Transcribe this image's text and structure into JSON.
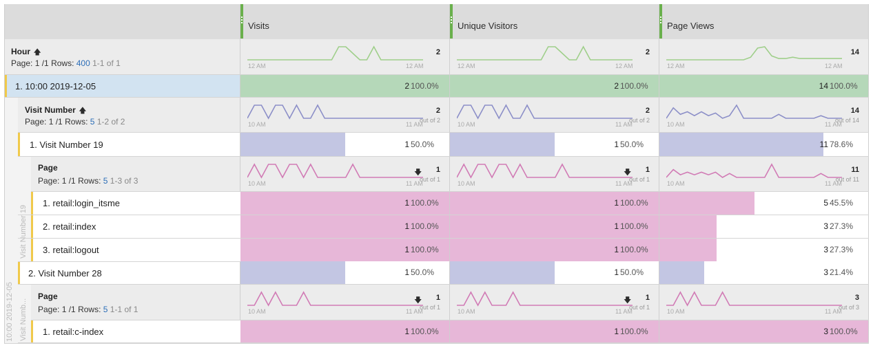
{
  "columns": [
    {
      "title": "Visits"
    },
    {
      "title": "Unique Visitors"
    },
    {
      "title": "Page Views"
    }
  ],
  "colors": {
    "green_bar": "#b5d8b9",
    "purple_bar": "#c3c6e3",
    "pink_bar": "#e7b7d8",
    "spark_green": "#9fcf8a",
    "spark_purple": "#8c8fc8",
    "spark_pink": "#d17bb5",
    "accent_yellow": "#f0c94a"
  },
  "hour": {
    "name": "Hour",
    "page": "Page: 1 /1",
    "rows_label": "Rows:",
    "rows_value": "400",
    "range": "1-1 of 1",
    "totals": [
      "2",
      "2",
      "14"
    ],
    "tick_start": "12 AM",
    "tick_end": "12 AM"
  },
  "row_hour": {
    "label": "1. 10:00 2019-12-05",
    "values": [
      {
        "n": "1",
        "v": "2",
        "p": "100.0%",
        "f": 1.0
      },
      {
        "v": "2",
        "p": "100.0%",
        "f": 1.0
      },
      {
        "v": "14",
        "p": "100.0%",
        "f": 1.0
      }
    ]
  },
  "visit_number": {
    "name": "Visit Number",
    "page": "Page: 1 /1",
    "rows_label": "Rows:",
    "rows_value": "5",
    "range": "1-2 of 2",
    "totals": [
      "2",
      "2",
      "14"
    ],
    "outof": [
      "out of 2",
      "out of 2",
      "out of 14"
    ],
    "tick_start": "10 AM",
    "tick_end": "11 AM"
  },
  "row_vn19": {
    "label": "1. Visit Number 19",
    "values": [
      {
        "v": "1",
        "p": "50.0%",
        "f": 0.5
      },
      {
        "v": "1",
        "p": "50.0%",
        "f": 0.5
      },
      {
        "v": "11",
        "p": "78.6%",
        "f": 0.786
      }
    ]
  },
  "page_dim_1": {
    "name": "Page",
    "page": "Page: 1 /1",
    "rows_label": "Rows:",
    "rows_value": "5",
    "range": "1-3 of 3",
    "totals": [
      "1",
      "1",
      "11"
    ],
    "outof": [
      "out of 1",
      "out of 1",
      "out of 11"
    ],
    "tick_start": "10 AM",
    "tick_end": "11 AM"
  },
  "pages_1": [
    {
      "label": "1. retail:login_itsme",
      "values": [
        {
          "v": "1",
          "p": "100.0%",
          "f": 1.0
        },
        {
          "v": "1",
          "p": "100.0%",
          "f": 1.0
        },
        {
          "v": "5",
          "p": "45.5%",
          "f": 0.455
        }
      ]
    },
    {
      "label": "2. retail:index",
      "values": [
        {
          "v": "1",
          "p": "100.0%",
          "f": 1.0
        },
        {
          "v": "1",
          "p": "100.0%",
          "f": 1.0
        },
        {
          "v": "3",
          "p": "27.3%",
          "f": 0.273
        }
      ]
    },
    {
      "label": "3. retail:logout",
      "values": [
        {
          "v": "1",
          "p": "100.0%",
          "f": 1.0
        },
        {
          "v": "1",
          "p": "100.0%",
          "f": 1.0
        },
        {
          "v": "3",
          "p": "27.3%",
          "f": 0.273
        }
      ]
    }
  ],
  "row_vn28": {
    "label": "2. Visit Number 28",
    "values": [
      {
        "v": "1",
        "p": "50.0%",
        "f": 0.5
      },
      {
        "v": "1",
        "p": "50.0%",
        "f": 0.5
      },
      {
        "v": "3",
        "p": "21.4%",
        "f": 0.214
      }
    ]
  },
  "page_dim_2": {
    "name": "Page",
    "page": "Page: 1 /1",
    "rows_label": "Rows:",
    "rows_value": "5",
    "range": "1-1 of 1",
    "totals": [
      "1",
      "1",
      "3"
    ],
    "outof": [
      "out of 1",
      "out of 1",
      "out of 3"
    ],
    "tick_start": "10 AM",
    "tick_end": "11 AM"
  },
  "pages_2": [
    {
      "label": "1. retail:c-index",
      "values": [
        {
          "v": "1",
          "p": "100.0%",
          "f": 1.0
        },
        {
          "v": "1",
          "p": "100.0%",
          "f": 1.0
        },
        {
          "v": "3",
          "p": "100.0%",
          "f": 1.0
        }
      ]
    }
  ],
  "side_labels": {
    "outer": "10:00 2019-12-05",
    "vn19": "Visit Number 19",
    "vn28": "Visit Numb..."
  },
  "sparklines": {
    "hour": [
      0,
      0,
      0,
      0,
      0,
      0,
      0,
      0,
      0,
      0,
      0,
      0,
      0,
      1,
      1,
      0.5,
      0,
      0,
      1,
      0,
      0,
      0,
      0,
      0,
      0,
      0
    ],
    "hour_pv": [
      0,
      0,
      0,
      0,
      0,
      0,
      0,
      0,
      0,
      0,
      0,
      0,
      0.2,
      0.9,
      1,
      0.3,
      0.1,
      0.1,
      0.2,
      0.1,
      0.1,
      0.1,
      0.1,
      0.1,
      0.1,
      0.1
    ],
    "vn": [
      0,
      1,
      1,
      0,
      1,
      1,
      0,
      1,
      0,
      0,
      1,
      0,
      0,
      0,
      0,
      0,
      0,
      0,
      0,
      0,
      0,
      0,
      0,
      0,
      0,
      0
    ],
    "vn_pv": [
      0,
      0.8,
      0.3,
      0.5,
      0.2,
      0.5,
      0.2,
      0.4,
      0,
      0.2,
      1,
      0,
      0,
      0,
      0,
      0,
      0.3,
      0,
      0,
      0,
      0,
      0,
      0.2,
      0,
      0,
      0
    ],
    "pg1": [
      0,
      1,
      0,
      1,
      1,
      0,
      1,
      1,
      0,
      1,
      0,
      0,
      0,
      0,
      0,
      1,
      0,
      0,
      0,
      0,
      0,
      0,
      0,
      0,
      0,
      0
    ],
    "pg1_pv": [
      0,
      0.6,
      0.2,
      0.4,
      0.2,
      0.4,
      0.2,
      0.4,
      0,
      0.3,
      0,
      0,
      0,
      0,
      0,
      1,
      0,
      0,
      0,
      0,
      0,
      0,
      0.3,
      0,
      0,
      0
    ],
    "pg2": [
      0,
      0,
      1,
      0,
      1,
      0,
      0,
      0,
      1,
      0,
      0,
      0,
      0,
      0,
      0,
      0,
      0,
      0,
      0,
      0,
      0,
      0,
      0,
      0,
      0,
      0
    ]
  }
}
